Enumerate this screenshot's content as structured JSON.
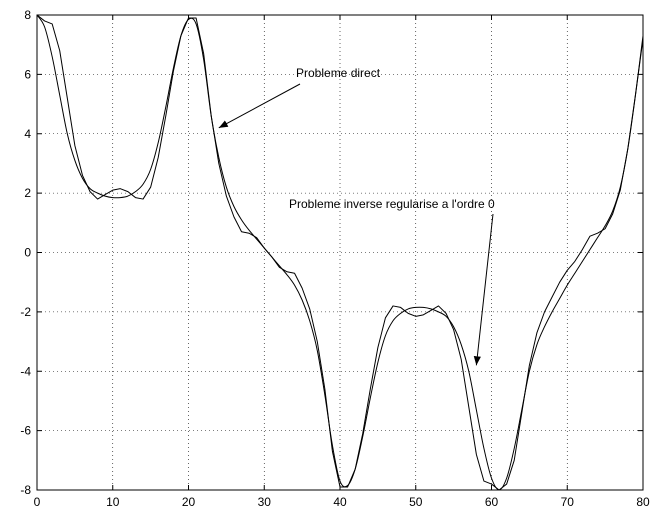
{
  "chart_data": {
    "type": "line",
    "title": "",
    "xlabel": "",
    "ylabel": "",
    "xlim": [
      0,
      80
    ],
    "ylim": [
      -8,
      8
    ],
    "grid": true,
    "legend": "none",
    "x_ticks": [
      "0",
      "10",
      "20",
      "30",
      "40",
      "50",
      "60",
      "70",
      "80"
    ],
    "y_ticks": [
      "-8",
      "-6",
      "-4",
      "-2",
      "0",
      "2",
      "4",
      "6",
      "8"
    ],
    "annotations": [
      {
        "text": "Probleme direct",
        "target": [
          24,
          4.2
        ]
      },
      {
        "text": "Probleme inverse regularise a l'ordre 0",
        "target": [
          58,
          -3.8
        ]
      }
    ],
    "series": [
      {
        "style": "smooth",
        "x": [
          0,
          1,
          2,
          3,
          4,
          5,
          6,
          7,
          8,
          9,
          10,
          11,
          12,
          13,
          14,
          15,
          16,
          17,
          18,
          19,
          20,
          21,
          22,
          23,
          24,
          25,
          26,
          27,
          28,
          29,
          30,
          31,
          32,
          33,
          34,
          35,
          36,
          37,
          38,
          39,
          40,
          41,
          42,
          43,
          44,
          45,
          46,
          47,
          48,
          49,
          50,
          51,
          52,
          53,
          54,
          55,
          56,
          57,
          58,
          59,
          60,
          61,
          62,
          63,
          64,
          65,
          66,
          67,
          68,
          69,
          70,
          71,
          72,
          73,
          74,
          75,
          76,
          77,
          78,
          79,
          80
        ],
        "y": [
          8.0,
          7.6,
          6.6,
          5.3,
          4.0,
          3.1,
          2.5,
          2.15,
          2.0,
          1.9,
          1.85,
          1.85,
          1.9,
          2.05,
          2.3,
          2.8,
          3.7,
          4.9,
          6.2,
          7.3,
          7.85,
          7.7,
          6.5,
          4.6,
          3.2,
          2.2,
          1.55,
          1.1,
          0.75,
          0.45,
          0.15,
          -0.15,
          -0.45,
          -0.75,
          -1.1,
          -1.6,
          -2.3,
          -3.3,
          -4.8,
          -6.5,
          -7.7,
          -7.85,
          -7.3,
          -6.2,
          -4.9,
          -3.7,
          -2.8,
          -2.3,
          -2.05,
          -1.9,
          -1.85,
          -1.85,
          -1.9,
          -2.0,
          -2.15,
          -2.5,
          -3.1,
          -4.0,
          -5.3,
          -6.6,
          -7.6,
          -8.0,
          -7.6,
          -6.6,
          -5.3,
          -4.0,
          -3.1,
          -2.5,
          -2.0,
          -1.55,
          -1.1,
          -0.7,
          -0.3,
          0.1,
          0.5,
          0.9,
          1.4,
          2.2,
          3.5,
          5.3,
          7.3
        ]
      },
      {
        "style": "staircase",
        "x": [
          0,
          1,
          2,
          3,
          4,
          5,
          6,
          7,
          8,
          9,
          10,
          11,
          12,
          13,
          14,
          15,
          16,
          17,
          18,
          19,
          20,
          21,
          22,
          23,
          24,
          25,
          26,
          27,
          28,
          29,
          30,
          31,
          32,
          33,
          34,
          35,
          36,
          37,
          38,
          39,
          40,
          41,
          42,
          43,
          44,
          45,
          46,
          47,
          48,
          49,
          50,
          51,
          52,
          53,
          54,
          55,
          56,
          57,
          58,
          59,
          60,
          61,
          62,
          63,
          64,
          65,
          66,
          67,
          68,
          69,
          70,
          71,
          72,
          73,
          74,
          75,
          76,
          77,
          78,
          79,
          80
        ],
        "y": [
          8.0,
          7.8,
          7.7,
          6.8,
          5.2,
          3.6,
          2.6,
          2.05,
          1.8,
          1.95,
          2.1,
          2.15,
          2.05,
          1.85,
          1.8,
          2.2,
          3.2,
          4.6,
          6.1,
          7.3,
          7.9,
          7.9,
          6.7,
          4.6,
          3.0,
          1.9,
          1.2,
          0.7,
          0.65,
          0.5,
          0.15,
          -0.15,
          -0.5,
          -0.65,
          -0.7,
          -1.2,
          -1.9,
          -3.0,
          -4.6,
          -6.7,
          -7.9,
          -7.9,
          -7.3,
          -6.1,
          -4.6,
          -3.2,
          -2.2,
          -1.8,
          -1.85,
          -2.05,
          -2.15,
          -2.1,
          -1.95,
          -1.8,
          -2.05,
          -2.6,
          -3.6,
          -5.2,
          -6.8,
          -7.7,
          -7.8,
          -8.0,
          -7.8,
          -7.0,
          -5.4,
          -3.8,
          -2.7,
          -2.0,
          -1.5,
          -1.0,
          -0.6,
          -0.3,
          0.1,
          0.55,
          0.65,
          0.8,
          1.3,
          2.1,
          3.5,
          5.3,
          7.2
        ]
      }
    ]
  }
}
